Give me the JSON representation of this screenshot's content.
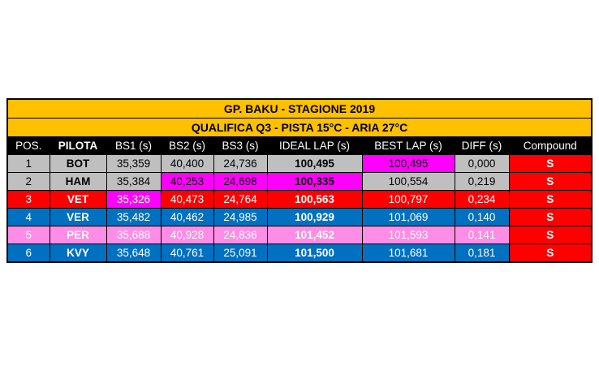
{
  "title": "GP. BAKU - STAGIONE 2019",
  "subtitle": "QUALIFICA Q3  - PISTA 15°C - ARIA 27°C",
  "headers": [
    "POS.",
    "PILOTA",
    "BS1 (s)",
    "BS2 (s)",
    "BS3 (s)",
    "IDEAL LAP (s)",
    "BEST LAP (s)",
    "DIFF (s)",
    "Compound"
  ],
  "colors": {
    "gray": "#bfbfbf",
    "red": "#ff0000",
    "blue": "#0070c0",
    "pink": "#ff8ce6",
    "magenta": "#ff00ff",
    "title_bg": "#ffc000"
  },
  "rows": [
    {
      "pos": "1",
      "pilota": "BOT",
      "bs1": "35,359",
      "bs2": "40,400",
      "bs3": "24,736",
      "ideal": "100,495",
      "best": "100,495",
      "diff": "0,000",
      "compound": "S",
      "row_color": "gray",
      "text_color": "#000000",
      "highlight": [
        "best"
      ]
    },
    {
      "pos": "2",
      "pilota": "HAM",
      "bs1": "35,384",
      "bs2": "40,253",
      "bs3": "24,698",
      "ideal": "100,335",
      "best": "100,554",
      "diff": "0,219",
      "compound": "S",
      "row_color": "gray",
      "text_color": "#000000",
      "highlight": [
        "bs2",
        "bs3",
        "ideal"
      ]
    },
    {
      "pos": "3",
      "pilota": "VET",
      "bs1": "35,326",
      "bs2": "40,473",
      "bs3": "24,764",
      "ideal": "100,563",
      "best": "100,797",
      "diff": "0,234",
      "compound": "S",
      "row_color": "red",
      "text_color": "#ffffff",
      "highlight": [
        "bs1"
      ]
    },
    {
      "pos": "4",
      "pilota": "VER",
      "bs1": "35,482",
      "bs2": "40,462",
      "bs3": "24,985",
      "ideal": "100,929",
      "best": "101,069",
      "diff": "0,140",
      "compound": "S",
      "row_color": "blue",
      "text_color": "#ffffff",
      "highlight": []
    },
    {
      "pos": "5",
      "pilota": "PER",
      "bs1": "35,688",
      "bs2": "40,928",
      "bs3": "24,836",
      "ideal": "101,452",
      "best": "101,593",
      "diff": "0,141",
      "compound": "S",
      "row_color": "pink",
      "text_color": "#ffffff",
      "highlight": []
    },
    {
      "pos": "6",
      "pilota": "KVY",
      "bs1": "35,648",
      "bs2": "40,761",
      "bs3": "25,091",
      "ideal": "101,500",
      "best": "101,681",
      "diff": "0,181",
      "compound": "S",
      "row_color": "blue",
      "text_color": "#ffffff",
      "highlight": []
    }
  ]
}
